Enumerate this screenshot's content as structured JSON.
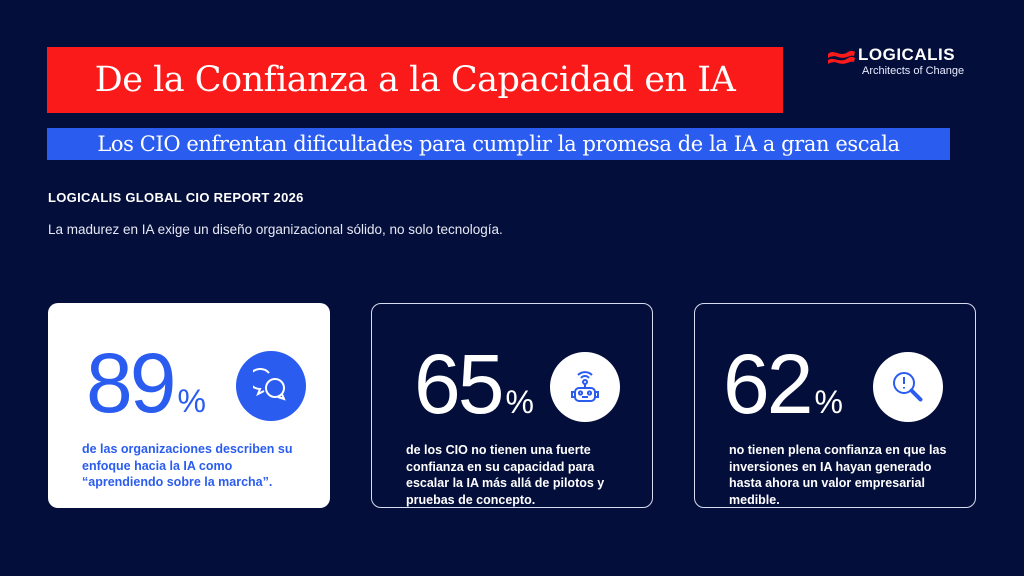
{
  "header": {
    "title": "De la Confianza a la Capacidad en IA",
    "subtitle": "Los CIO enfrentan dificultades para cumplir la promesa de la IA a gran escala",
    "report_label": "LOGICALIS GLOBAL CIO REPORT 2026",
    "lead": "La madurez en IA exige un diseño organizacional sólido, no solo tecnología."
  },
  "logo": {
    "name": "LOGICALIS",
    "tagline": "Architects of Change"
  },
  "colors": {
    "background": "#040e3a",
    "red": "#fb1a1a",
    "blue": "#2a5cf0"
  },
  "stats": [
    {
      "value": "89",
      "unit": "%",
      "icon": "chat-bubbles-icon",
      "text": "de las organizaciones describen su enfoque hacia la IA como “aprendiendo sobre la marcha”."
    },
    {
      "value": "65",
      "unit": "%",
      "icon": "robot-icon",
      "text": "de los CIO no tienen una fuerte confianza en su capacidad para escalar la IA más allá de pilotos y pruebas de concepto."
    },
    {
      "value": "62",
      "unit": "%",
      "icon": "search-alert-icon",
      "text": "no tienen plena confianza en que las inversiones en IA hayan generado hasta ahora un valor empresarial medible."
    }
  ]
}
